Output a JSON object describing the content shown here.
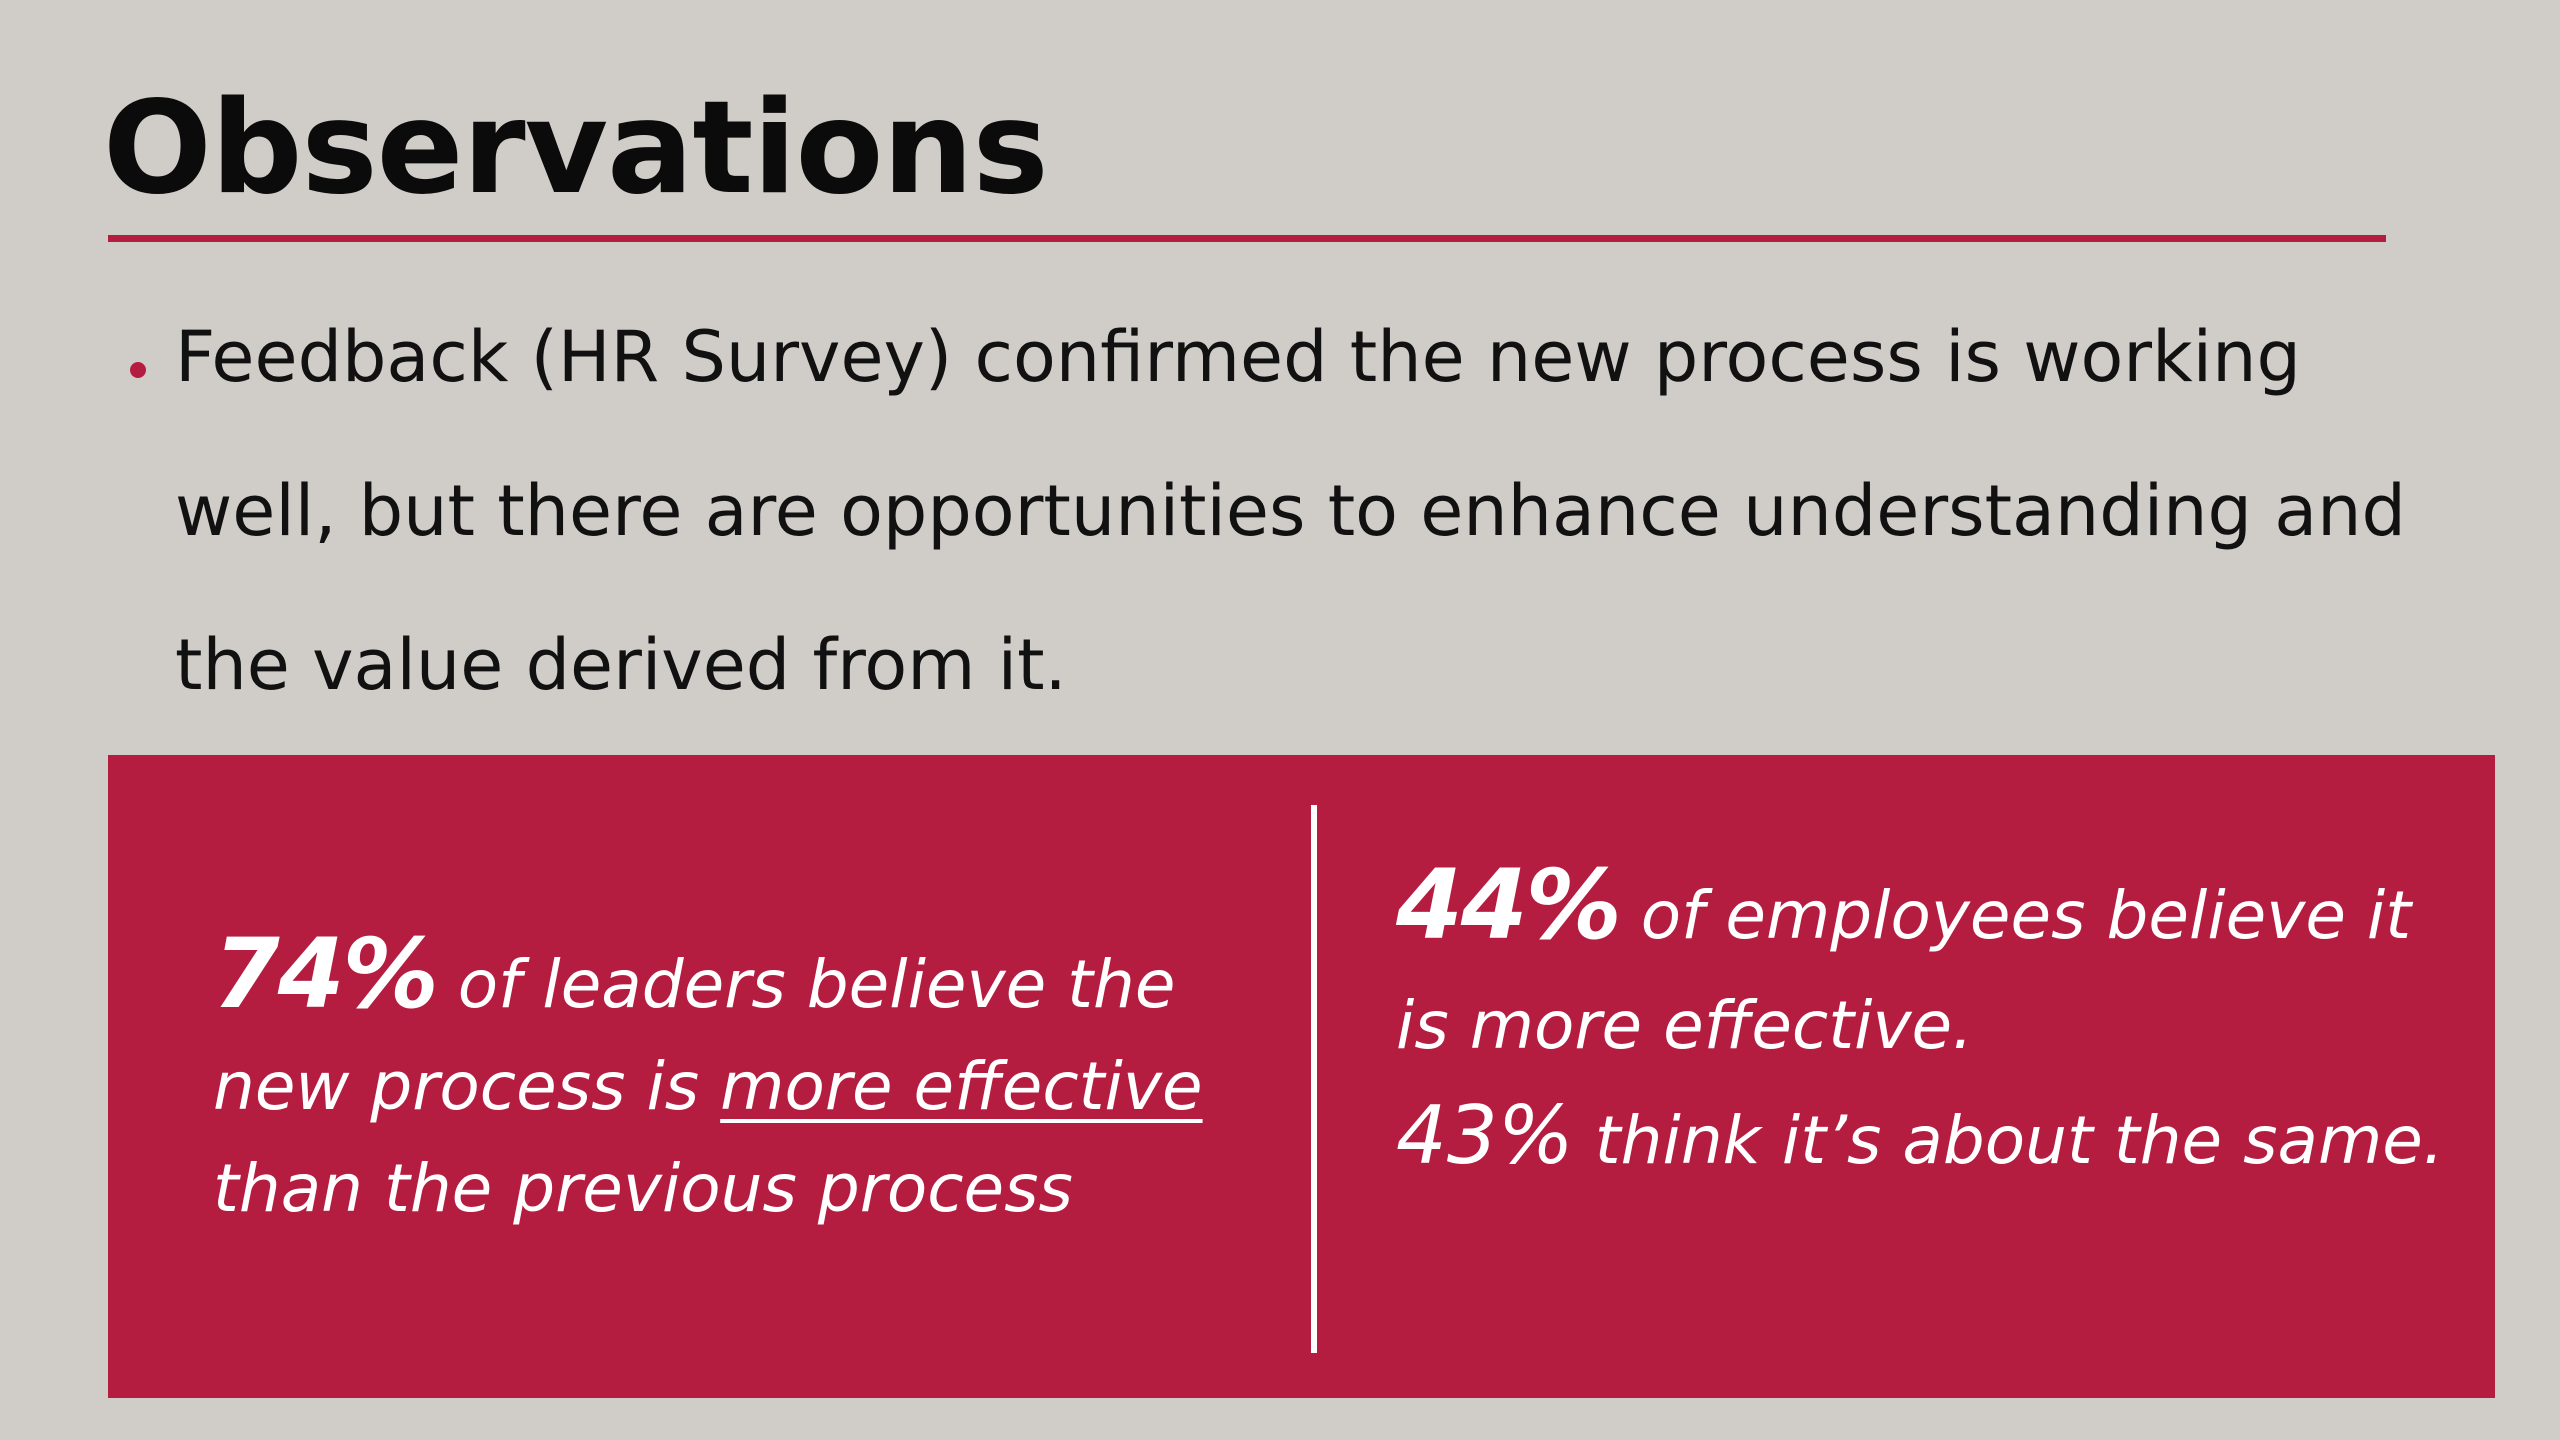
{
  "slide": {
    "title": "Observations",
    "bullet": "Feedback (HR Survey) confirmed the new process is working well, but there are opportunities to enhance understanding and the value derived from it.",
    "colors": {
      "background": "#d0ccc8",
      "accent": "#b51d40",
      "panel_text": "#ffffff",
      "body_text": "#111111"
    },
    "left_stat": {
      "figure": "74%",
      "text_before": " of leaders believe the new process is ",
      "emphasis": "more effective",
      "text_after": " than the previous process"
    },
    "right_stat": {
      "figure_1": "44%",
      "text_1": " of employees believe it is more effective.",
      "figure_2": "43%",
      "text_2": " think it’s about the same."
    }
  }
}
